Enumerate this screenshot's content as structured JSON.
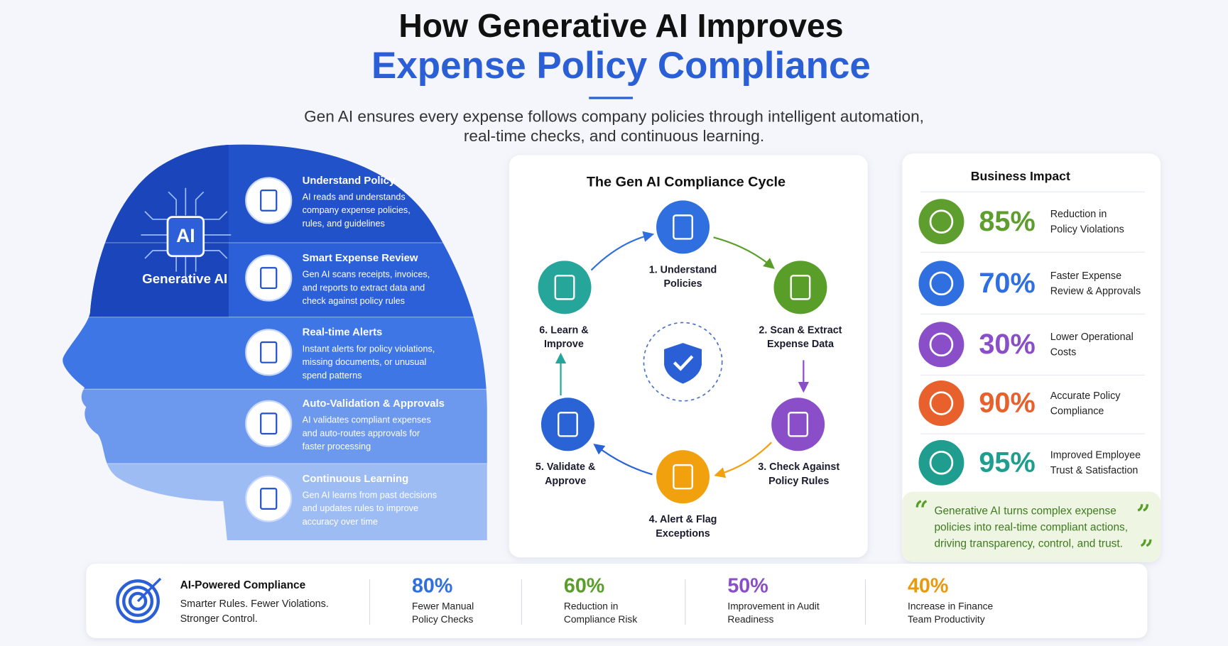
{
  "header": {
    "title_line1": "How Generative AI Improves",
    "title_line2": "Expense Policy Compliance",
    "subtitle_lines": [
      "Gen AI ensures every expense follows company policies through intelligent automation,",
      "real-time checks, and continuous learning."
    ]
  },
  "head": {
    "badge": "AI",
    "label": "Generative AI",
    "steps": [
      {
        "title": "Understand Policy",
        "lines": [
          "AI reads and understands",
          "company expense policies,",
          "rules, and guidelines"
        ]
      },
      {
        "title": "Smart Expense Review",
        "lines": [
          "Gen AI scans receipts, invoices,",
          "and reports to extract data and",
          "check against policy rules"
        ]
      },
      {
        "title": "Real-time Alerts",
        "lines": [
          "Instant alerts for policy violations,",
          "missing documents, or unusual",
          "spend patterns"
        ]
      },
      {
        "title": "Auto-Validation & Approvals",
        "lines": [
          "AI validates compliant expenses",
          "and auto-routes approvals for",
          "faster processing"
        ]
      },
      {
        "title": "Continuous Learning",
        "lines": [
          "Gen AI learns from past decisions",
          "and updates rules to improve",
          "accuracy over time"
        ]
      }
    ]
  },
  "cycle": {
    "title": "The Gen AI Compliance Cycle",
    "steps": [
      {
        "lines": [
          "1. Understand",
          "Policies"
        ],
        "color": "#2f6fe0"
      },
      {
        "lines": [
          "2. Scan & Extract",
          "Expense Data"
        ],
        "color": "#5a9e2a"
      },
      {
        "lines": [
          "3. Check Against",
          "Policy Rules"
        ],
        "color": "#8a4fc8"
      },
      {
        "lines": [
          "4. Alert & Flag",
          "Exceptions"
        ],
        "color": "#f1a10d"
      },
      {
        "lines": [
          "5. Validate &",
          "Approve"
        ],
        "color": "#2a63d6"
      },
      {
        "lines": [
          "6. Learn &",
          "Improve"
        ],
        "color": "#26a69a"
      }
    ]
  },
  "impact": {
    "title": "Business Impact",
    "items": [
      {
        "value": "85%",
        "lines": [
          "Reduction in",
          "Policy Violations"
        ],
        "color": "#5e9e2e"
      },
      {
        "value": "70%",
        "lines": [
          "Faster Expense",
          "Review & Approvals"
        ],
        "color": "#2f6fe0"
      },
      {
        "value": "30%",
        "lines": [
          "Lower Operational",
          "Costs"
        ],
        "color": "#8a4fc8"
      },
      {
        "value": "90%",
        "lines": [
          "Accurate Policy",
          "Compliance"
        ],
        "color": "#e8612c"
      },
      {
        "value": "95%",
        "lines": [
          "Improved Employee",
          "Trust & Satisfaction"
        ],
        "color": "#1f9e8f"
      }
    ],
    "quote_lines": [
      "Generative AI turns complex expense",
      "policies into real-time compliant actions,",
      "driving transparency, control, and trust."
    ]
  },
  "footer": {
    "title": "AI-Powered Compliance",
    "lines": [
      "Smarter Rules. Fewer Violations.",
      "Stronger Control."
    ],
    "stats": [
      {
        "value": "80%",
        "lines": [
          "Fewer Manual",
          "Policy Checks"
        ],
        "color": "#2f6fe0"
      },
      {
        "value": "60%",
        "lines": [
          "Reduction in",
          "Compliance Risk"
        ],
        "color": "#5a9e2a"
      },
      {
        "value": "50%",
        "lines": [
          "Improvement in Audit",
          "Readiness"
        ],
        "color": "#8a4fc8"
      },
      {
        "value": "40%",
        "lines": [
          "Increase in Finance",
          "Team Productivity"
        ],
        "color": "#e89a0c"
      }
    ]
  }
}
